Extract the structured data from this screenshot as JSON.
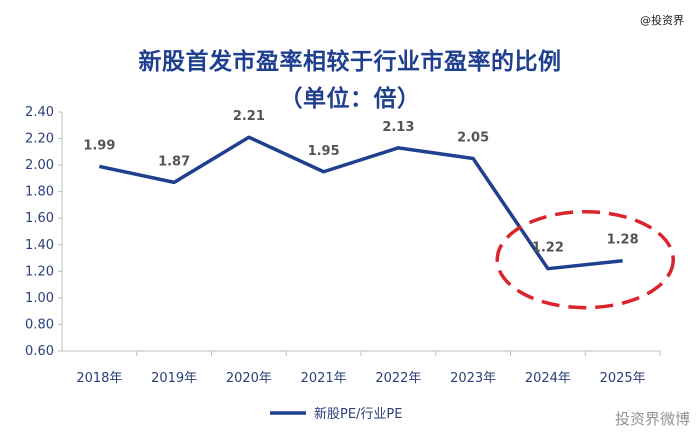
{
  "watermark_top": "@投资界",
  "watermark_bottom": "投资界微博",
  "chart_data": {
    "type": "line",
    "title": "新股首发市盈率相较于行业市盈率的比例",
    "subtitle": "（单位：倍）",
    "categories": [
      "2018年",
      "2019年",
      "2020年",
      "2021年",
      "2022年",
      "2023年",
      "2024年",
      "2025年"
    ],
    "series": [
      {
        "name": "新股PE/行业PE",
        "values": [
          1.99,
          1.87,
          2.21,
          1.95,
          2.13,
          2.05,
          1.22,
          1.28
        ]
      }
    ],
    "data_labels": [
      "1.99",
      "1.87",
      "2.21",
      "1.95",
      "2.13",
      "2.05",
      "1.22",
      "1.28"
    ],
    "yticks": [
      "0.60",
      "0.80",
      "1.00",
      "1.20",
      "1.40",
      "1.60",
      "1.80",
      "2.00",
      "2.20",
      "2.40"
    ],
    "ylim": [
      0.6,
      2.4
    ],
    "grid": false,
    "legend_position": "bottom-center",
    "line_color": "#1f3f8f",
    "highlight_color": "#d9252b",
    "annotation": "red dashed ellipse around 2024-2025"
  }
}
